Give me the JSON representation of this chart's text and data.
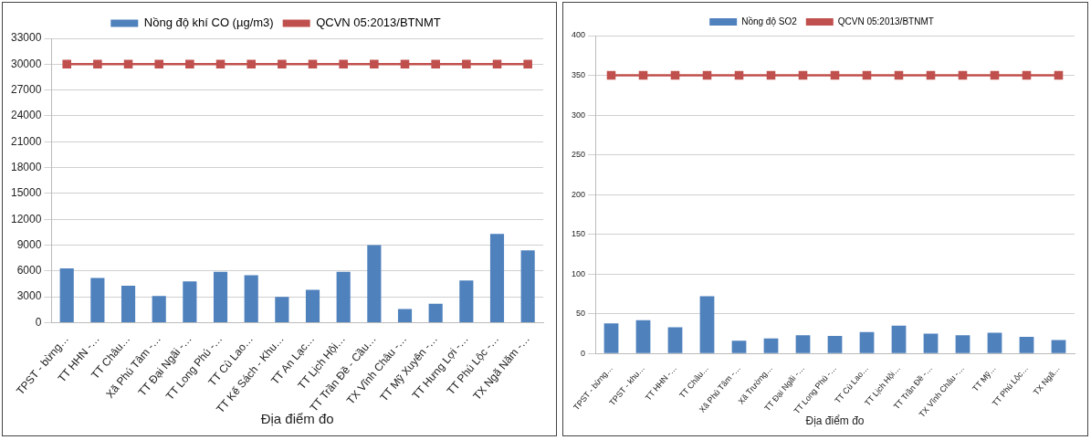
{
  "chart_data": [
    {
      "type": "bar",
      "xlabel": "Địa điểm đo",
      "categories": [
        "TPST - bừng…",
        "TT HHN -…",
        "TT Châu…",
        "Xã Phú Tâm -…",
        "TT Đại Ngãi -…",
        "TT Long Phú -…",
        "TT Cù Lao…",
        "TT Kế Sách - Khu…",
        "TT An Lạc…",
        "TT Lịch Hội…",
        "TT Trần Đề - Cầu…",
        "TX Vĩnh Châu -…",
        "TT Mỹ Xuyên -…",
        "TT Hưng Lợi -…",
        "TT Phú Lộc -…",
        "TX Ngã Năm -…"
      ],
      "series": [
        {
          "name": "Nồng độ khí CO (µg/m3)",
          "color": "#4f81bd",
          "values": [
            6300,
            5200,
            4300,
            3100,
            4800,
            5900,
            5500,
            3000,
            3800,
            5900,
            9000,
            1600,
            2200,
            4900,
            10300,
            8400
          ]
        },
        {
          "name": "QCVN 05:2013/BTNMT",
          "type": "line",
          "color": "#c0504d",
          "values": [
            30000,
            30000,
            30000,
            30000,
            30000,
            30000,
            30000,
            30000,
            30000,
            30000,
            30000,
            30000,
            30000,
            30000,
            30000,
            30000
          ]
        }
      ],
      "ylim": [
        0,
        33000
      ],
      "yticks": [
        0,
        3000,
        6000,
        9000,
        12000,
        15000,
        18000,
        21000,
        24000,
        27000,
        30000,
        33000
      ],
      "grid": "y",
      "legend": "top",
      "marker": "square"
    },
    {
      "type": "bar",
      "xlabel": "Địa điểm đo",
      "categories": [
        "TPST - bừng…",
        "TPST - khu…",
        "TT HHN -…",
        "TT Châu…",
        "Xã Phú Tâm -…",
        "Xã Trường…",
        "TT Đại Ngãi -…",
        "TT Long Phú -…",
        "TT Cù Lao…",
        "TT Lịch Hội…",
        "TT Trần Đề -…",
        "TX Vĩnh Châu -…",
        "TT Mỹ…",
        "TT Phú Lộc…",
        "TX Ngã…"
      ],
      "series": [
        {
          "name": "Nồng độ SO2",
          "color": "#4f81bd",
          "values": [
            38,
            42,
            33,
            72,
            16,
            19,
            23,
            22,
            27,
            35,
            25,
            23,
            26,
            21,
            17
          ]
        },
        {
          "name": "QCVN 05:2013/BTNMT",
          "type": "line",
          "color": "#c0504d",
          "values": [
            350,
            350,
            350,
            350,
            350,
            350,
            350,
            350,
            350,
            350,
            350,
            350,
            350,
            350,
            350
          ]
        }
      ],
      "ylim": [
        0,
        400
      ],
      "yticks": [
        0,
        50,
        100,
        150,
        200,
        250,
        300,
        350,
        400
      ],
      "grid": "y",
      "legend": "top",
      "marker": "square"
    }
  ]
}
